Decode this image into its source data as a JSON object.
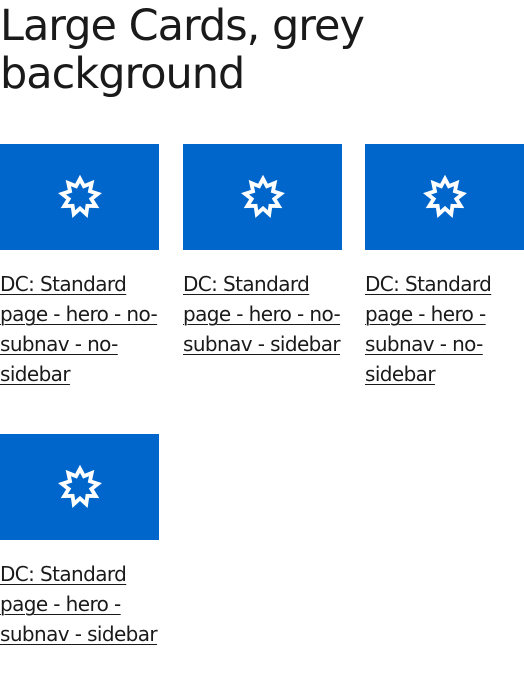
{
  "page": {
    "title": "Large Cards, grey background"
  },
  "colors": {
    "card_image_bg": "#0066cc",
    "icon": "#ffffff",
    "text": "#1a1a1a"
  },
  "cards": [
    {
      "icon": "starburst-icon",
      "label": "DC: Standard page - hero - no-subnav - no-sidebar"
    },
    {
      "icon": "starburst-icon",
      "label": "DC: Standard page - hero - no-subnav - sidebar"
    },
    {
      "icon": "starburst-icon",
      "label": "DC: Standard page - hero - subnav - no-sidebar"
    },
    {
      "icon": "starburst-icon",
      "label": "DC: Standard page - hero - subnav - sidebar"
    }
  ]
}
